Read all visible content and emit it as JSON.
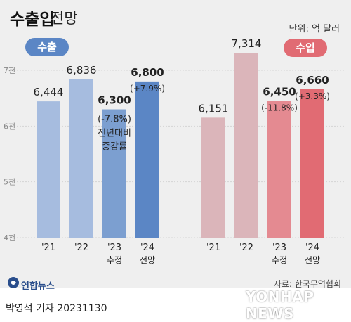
{
  "header": {
    "title": "수출입",
    "subtitle": "전망",
    "unit": "단위: 억 달러"
  },
  "groups": {
    "export_label": "수출",
    "import_label": "수입"
  },
  "annotation": {
    "export_line1": "(-7.8%)",
    "export_line2": "전년대비",
    "export_line3": "증감률"
  },
  "footer": {
    "logo": "연합뉴스",
    "source": "자료: 한국무역협회",
    "byline": "박영석 기자  20231130",
    "watermark": "YONHAP NEWS"
  },
  "colors": {
    "export_light": "#a6bcdf",
    "export_mid": "#7c9fd0",
    "export_dark": "#5b86c5",
    "import_light": "#dbb5ba",
    "import_mid": "#e48a91",
    "import_dark": "#e16b73"
  },
  "chart_data": {
    "type": "bar",
    "ylim": [
      4000,
      7000
    ],
    "yticks": [
      "4천",
      "5천",
      "6천",
      "7천"
    ],
    "ytick_values": [
      4000,
      5000,
      6000,
      7000
    ],
    "series": [
      {
        "name": "수출",
        "categories": [
          "'21",
          "'22",
          "'23",
          "'24"
        ],
        "category_sub": [
          "",
          "",
          "추정",
          "전망"
        ],
        "values": [
          6444,
          6836,
          6300,
          6800
        ],
        "value_labels": [
          "6,444",
          "6,836",
          "6,300",
          "6,800"
        ],
        "change_labels": [
          "",
          "",
          "",
          "(+7.9%)"
        ],
        "colors": [
          "#a6bcdf",
          "#a6bcdf",
          "#7c9fd0",
          "#5b86c5"
        ]
      },
      {
        "name": "수입",
        "categories": [
          "'21",
          "'22",
          "'23",
          "'24"
        ],
        "category_sub": [
          "",
          "",
          "추정",
          "전망"
        ],
        "values": [
          6151,
          7314,
          6450,
          6660
        ],
        "value_labels": [
          "6,151",
          "7,314",
          "6,450",
          "6,660"
        ],
        "change_labels": [
          "",
          "",
          "(-11.8%)",
          "(+3.3%)"
        ],
        "colors": [
          "#dbb5ba",
          "#dbb5ba",
          "#e48a91",
          "#e16b73"
        ]
      }
    ]
  }
}
